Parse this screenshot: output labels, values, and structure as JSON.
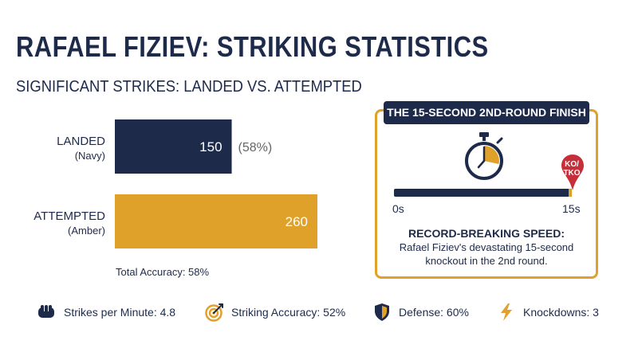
{
  "title": "RAFAEL FIZIEV: STRIKING STATISTICS",
  "subtitle": "SIGNIFICANT STRIKES: LANDED VS. ATTEMPTED",
  "chart_data": {
    "type": "bar",
    "orientation": "horizontal",
    "categories": [
      "LANDED",
      "ATTEMPTED"
    ],
    "category_sublabels": [
      "(Navy)",
      "(Amber)"
    ],
    "values": [
      150,
      260
    ],
    "value_labels": [
      "150",
      "260"
    ],
    "annotations": [
      "(58%)",
      ""
    ],
    "colors": [
      "#1e2a4a",
      "#e0a12a"
    ],
    "footnote": "Total Accuracy: 58%"
  },
  "finish_card": {
    "title": "THE 15-SECOND 2ND-ROUND FINISH",
    "marker_label": "KO/ TKO",
    "start_label": "0s",
    "end_label": "15s",
    "progress": 1.0,
    "record_heading": "RECORD-BREAKING SPEED:",
    "record_text": "Rafael Fiziev's devastating 15-second knockout in the 2nd round.",
    "stopwatch_icon": "stopwatch-icon"
  },
  "stats": [
    {
      "icon": "fist-icon",
      "label": "Strikes per Minute: 4.8"
    },
    {
      "icon": "target-icon",
      "label": "Striking Accuracy: 52%"
    },
    {
      "icon": "shield-icon",
      "label": "Defense: 60%"
    },
    {
      "icon": "lightning-icon",
      "label": "Knockdowns: 3"
    }
  ],
  "colors": {
    "navy": "#1e2a4a",
    "amber": "#e0a12a"
  }
}
